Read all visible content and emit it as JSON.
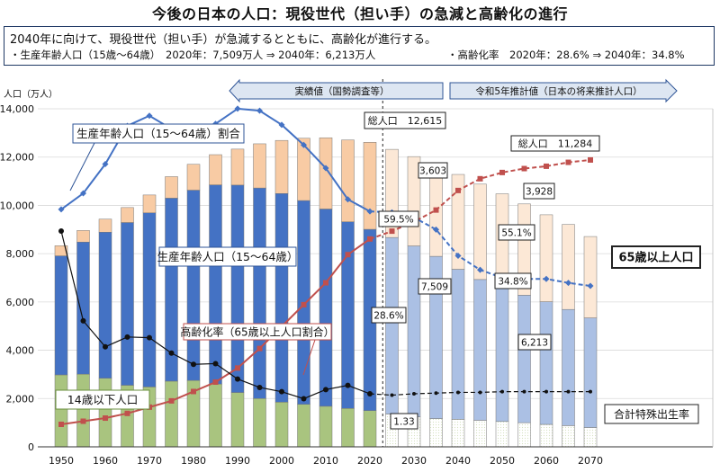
{
  "page": {
    "title": "今後の日本の人口：現役世代（担い手）の急減と高齢化の進行",
    "summary": {
      "lead": "2040年に向けて、現役世代（担い手）が急減するとともに、高齢化が進行する。",
      "line1": "・生産年齢人口（15歳〜64歳）　2020年：7,509万人 ⇒ 2040年：6,213万人",
      "line2": "・高齢化率　2020年：28.6% ⇒ 2040年：34.8%"
    }
  },
  "chart_data": {
    "type": "bar",
    "stacked": true,
    "categories": [
      "1950",
      "1955",
      "1960",
      "1965",
      "1970",
      "1975",
      "1980",
      "1985",
      "1990",
      "1995",
      "2000",
      "2005",
      "2010",
      "2015",
      "2020",
      "2025",
      "2030",
      "2035",
      "2040",
      "2045",
      "2050",
      "2055",
      "2060",
      "2065",
      "2070"
    ],
    "x_tick_labels": [
      "1950",
      "1960",
      "1970",
      "1980",
      "1990",
      "2000",
      "2010",
      "2020",
      "2030",
      "2040",
      "2050",
      "2060",
      "2070"
    ],
    "projection_start_index": 15,
    "ylabel": "人口（万人）",
    "ylim": [
      0,
      14000
    ],
    "yticks": [
      "0",
      "2,000",
      "4,000",
      "6,000",
      "8,000",
      "10,000",
      "12,000",
      "14,000"
    ],
    "series": [
      {
        "name": "14歳以下人口",
        "color": "#a9c47f",
        "values": [
          2980,
          3010,
          2840,
          2550,
          2480,
          2720,
          2750,
          2600,
          2250,
          2000,
          1850,
          1760,
          1680,
          1590,
          1500,
          1360,
          1240,
          1170,
          1140,
          1100,
          1050,
          1000,
          930,
          880,
          800
        ]
      },
      {
        "name": "生産年齢人口（15〜64歳）",
        "color": "#4472c4",
        "values": [
          4930,
          5470,
          6050,
          6740,
          7210,
          7580,
          7880,
          8250,
          8590,
          8720,
          8640,
          8440,
          8170,
          7730,
          7509,
          7310,
          7080,
          6720,
          6213,
          5830,
          5540,
          5280,
          5080,
          4810,
          4540
        ]
      },
      {
        "name": "65歳以上人口",
        "color": "#f8cba4",
        "values": [
          420,
          480,
          540,
          620,
          740,
          890,
          1070,
          1250,
          1490,
          1830,
          2200,
          2580,
          2950,
          3390,
          3603,
          3650,
          3700,
          3780,
          3928,
          3950,
          3890,
          3780,
          3600,
          3520,
          3370
        ]
      }
    ],
    "right_axis_series": [
      {
        "name": "生産年齢人口（15〜64歳）割合",
        "unit": "%",
        "color": "#4472c4",
        "values": [
          59.7,
          61.3,
          64.2,
          68.0,
          69.0,
          67.7,
          67.4,
          68.2,
          69.7,
          69.5,
          68.1,
          66.1,
          63.8,
          60.7,
          59.5,
          59.4,
          58.9,
          57.7,
          55.1,
          53.7,
          52.9,
          52.8,
          52.8,
          52.4,
          52.1
        ]
      },
      {
        "name": "高齢化率（65歳以上人口割合）",
        "unit": "%",
        "color": "#c0504d",
        "values": [
          4.9,
          5.3,
          5.7,
          6.3,
          7.1,
          7.9,
          9.1,
          10.3,
          12.1,
          14.6,
          17.4,
          20.2,
          23.0,
          26.6,
          28.6,
          29.6,
          30.8,
          32.3,
          34.8,
          36.3,
          37.1,
          37.6,
          37.9,
          38.4,
          38.7
        ]
      },
      {
        "name": "合計特殊出生率",
        "unit": "rate",
        "color": "#111111",
        "values": [
          3.65,
          2.37,
          2.0,
          2.14,
          2.13,
          1.91,
          1.75,
          1.76,
          1.54,
          1.42,
          1.36,
          1.26,
          1.39,
          1.45,
          1.33,
          1.31,
          1.33,
          1.34,
          1.35,
          1.35,
          1.36,
          1.36,
          1.36,
          1.36,
          1.36
        ]
      }
    ],
    "banners": {
      "actual": "実績値（国勢調査等）",
      "projection": "令和5年推計値（日本の将来推計人口）"
    },
    "annotations": {
      "label_working_ratio": "生産年齢人口（15〜64歳）割合",
      "label_working_pop": "生産年齢人口（15〜64歳）",
      "label_aging_rate": "高齢化率（65歳以上人口割合）",
      "label_children": "14歳以下人口",
      "label_elderly": "65歳以上人口",
      "label_fertility": "合計特殊出生率",
      "total_2020": "総人口　12,615",
      "total_2040": "総人口　11,284",
      "elderly_2020": "3,603",
      "elderly_2040": "3,928",
      "ratio_2020": "59.5%",
      "ratio_2040": "55.1%",
      "working_2020": "7,509",
      "working_2040": "6,213",
      "aging_2020": "28.6%",
      "aging_2040": "34.8%",
      "fertility_2020": "1.33"
    }
  }
}
